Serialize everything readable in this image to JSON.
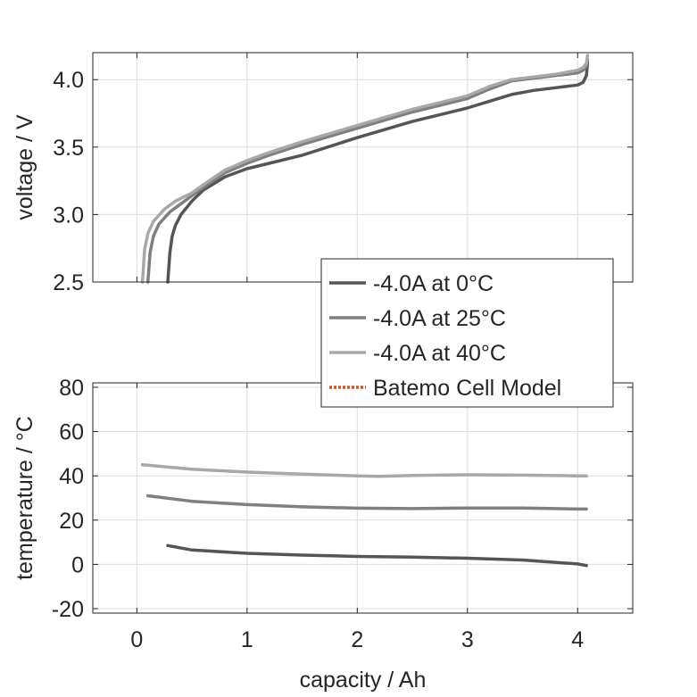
{
  "chart_data": [
    {
      "type": "line",
      "ylabel": "voltage / V",
      "xlim": [
        -0.4,
        4.5
      ],
      "ylim": [
        2.5,
        4.2
      ],
      "yticks": [
        2.5,
        3.0,
        3.5,
        4.0
      ],
      "yticklabels": [
        "2.5",
        "3.0",
        "3.5",
        "4.0"
      ],
      "grid": true,
      "legend": {
        "placement": "bottom-right",
        "entries": [
          {
            "label": "-4.0A at 0°C",
            "color": "#555555",
            "style": "solid"
          },
          {
            "label": "-4.0A at 25°C",
            "color": "#7f7f7f",
            "style": "solid"
          },
          {
            "label": "-4.0A at 40°C",
            "color": "#a8a8a8",
            "style": "solid"
          },
          {
            "label": "Batemo Cell Model",
            "color": "#d95319",
            "style": "dotted"
          }
        ]
      },
      "series": [
        {
          "name": "-4.0A at 0°C",
          "color": "#555555",
          "x": [
            0.28,
            0.3,
            0.32,
            0.35,
            0.4,
            0.5,
            0.6,
            0.8,
            1.0,
            1.2,
            1.5,
            2.0,
            2.5,
            3.0,
            3.2,
            3.4,
            3.6,
            3.8,
            4.0,
            4.05,
            4.08,
            4.09
          ],
          "y": [
            2.5,
            2.72,
            2.84,
            2.92,
            3.0,
            3.1,
            3.18,
            3.28,
            3.34,
            3.38,
            3.44,
            3.57,
            3.69,
            3.79,
            3.84,
            3.89,
            3.92,
            3.94,
            3.96,
            3.98,
            4.03,
            4.13
          ]
        },
        {
          "name": "-4.0A at 25°C",
          "color": "#7f7f7f",
          "x": [
            0.1,
            0.12,
            0.15,
            0.2,
            0.3,
            0.4,
            0.5,
            0.6,
            0.8,
            1.0,
            1.2,
            1.5,
            2.0,
            2.5,
            3.0,
            3.2,
            3.4,
            3.6,
            3.8,
            4.0,
            4.05,
            4.08,
            4.09
          ],
          "y": [
            2.5,
            2.72,
            2.84,
            2.93,
            3.02,
            3.08,
            3.14,
            3.2,
            3.31,
            3.38,
            3.44,
            3.52,
            3.64,
            3.76,
            3.86,
            3.93,
            3.99,
            4.01,
            4.03,
            4.05,
            4.07,
            4.1,
            4.15
          ]
        },
        {
          "name": "-4.0A at 40°C",
          "color": "#a8a8a8",
          "x": [
            0.05,
            0.07,
            0.1,
            0.15,
            0.25,
            0.35,
            0.5,
            0.6,
            0.8,
            1.0,
            1.2,
            1.5,
            2.0,
            2.5,
            3.0,
            3.2,
            3.4,
            3.6,
            3.8,
            4.0,
            4.05,
            4.08,
            4.09
          ],
          "y": [
            2.5,
            2.74,
            2.86,
            2.95,
            3.04,
            3.1,
            3.16,
            3.22,
            3.33,
            3.4,
            3.46,
            3.54,
            3.66,
            3.78,
            3.88,
            3.95,
            4.0,
            4.02,
            4.04,
            4.07,
            4.09,
            4.12,
            4.18
          ]
        }
      ]
    },
    {
      "type": "line",
      "xlabel": "capacity / Ah",
      "ylabel": "temperature / °C",
      "xlim": [
        -0.4,
        4.5
      ],
      "ylim": [
        -22,
        82
      ],
      "xticks": [
        0,
        1,
        2,
        3,
        4
      ],
      "xticklabels": [
        "0",
        "1",
        "2",
        "3",
        "4"
      ],
      "yticks": [
        -20,
        0,
        20,
        40,
        60,
        80
      ],
      "yticklabels": [
        "-20",
        "0",
        "20",
        "40",
        "60",
        "80"
      ],
      "grid": true,
      "series": [
        {
          "name": "-4.0A at 0°C",
          "color": "#555555",
          "x": [
            0.28,
            0.5,
            1.0,
            1.5,
            2.0,
            2.5,
            3.0,
            3.5,
            4.0,
            4.08
          ],
          "y": [
            8.5,
            6.5,
            5.0,
            4.2,
            3.6,
            3.3,
            2.8,
            2.0,
            0.2,
            -0.5
          ]
        },
        {
          "name": "-4.0A at 25°C",
          "color": "#7f7f7f",
          "x": [
            0.1,
            0.5,
            1.0,
            1.5,
            2.0,
            2.5,
            3.0,
            3.5,
            4.0,
            4.08
          ],
          "y": [
            31.0,
            28.5,
            27.0,
            26.0,
            25.4,
            25.2,
            25.5,
            25.5,
            25.0,
            25.0
          ]
        },
        {
          "name": "-4.0A at 40°C",
          "color": "#a8a8a8",
          "x": [
            0.05,
            0.5,
            1.0,
            1.5,
            2.0,
            2.2,
            2.5,
            3.0,
            3.5,
            4.0,
            4.08
          ],
          "y": [
            45.0,
            43.0,
            41.7,
            40.8,
            40.0,
            39.8,
            40.2,
            40.5,
            40.3,
            40.0,
            40.0
          ]
        }
      ]
    }
  ]
}
